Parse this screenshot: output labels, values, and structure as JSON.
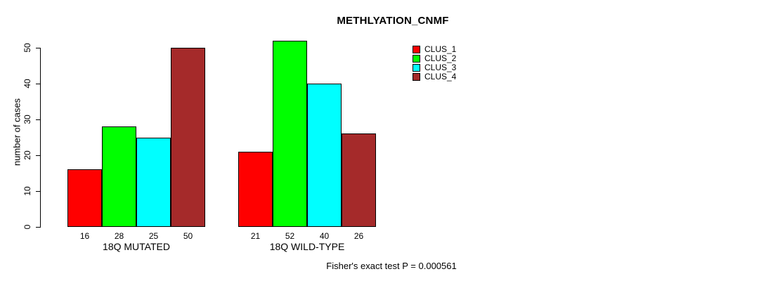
{
  "chart_data": {
    "type": "bar",
    "title": "METHLYATION_CNMF",
    "ylabel": "number of cases",
    "ylim": [
      0,
      50
    ],
    "yticks": [
      0,
      10,
      20,
      30,
      40,
      50
    ],
    "categories": [
      "18Q MUTATED",
      "18Q WILD-TYPE"
    ],
    "series": [
      {
        "name": "CLUS_1",
        "color": "#ff0000",
        "values": [
          16,
          21
        ]
      },
      {
        "name": "CLUS_2",
        "color": "#00ff00",
        "values": [
          28,
          52
        ]
      },
      {
        "name": "CLUS_3",
        "color": "#00ffff",
        "values": [
          25,
          40
        ]
      },
      {
        "name": "CLUS_4",
        "color": "#a52a2a",
        "values": [
          50,
          26
        ]
      }
    ],
    "legend_position": "top-right",
    "grid": false,
    "bar_value_labels_shown": true,
    "annotation": "Fisher's exact test P = 0.000561"
  }
}
